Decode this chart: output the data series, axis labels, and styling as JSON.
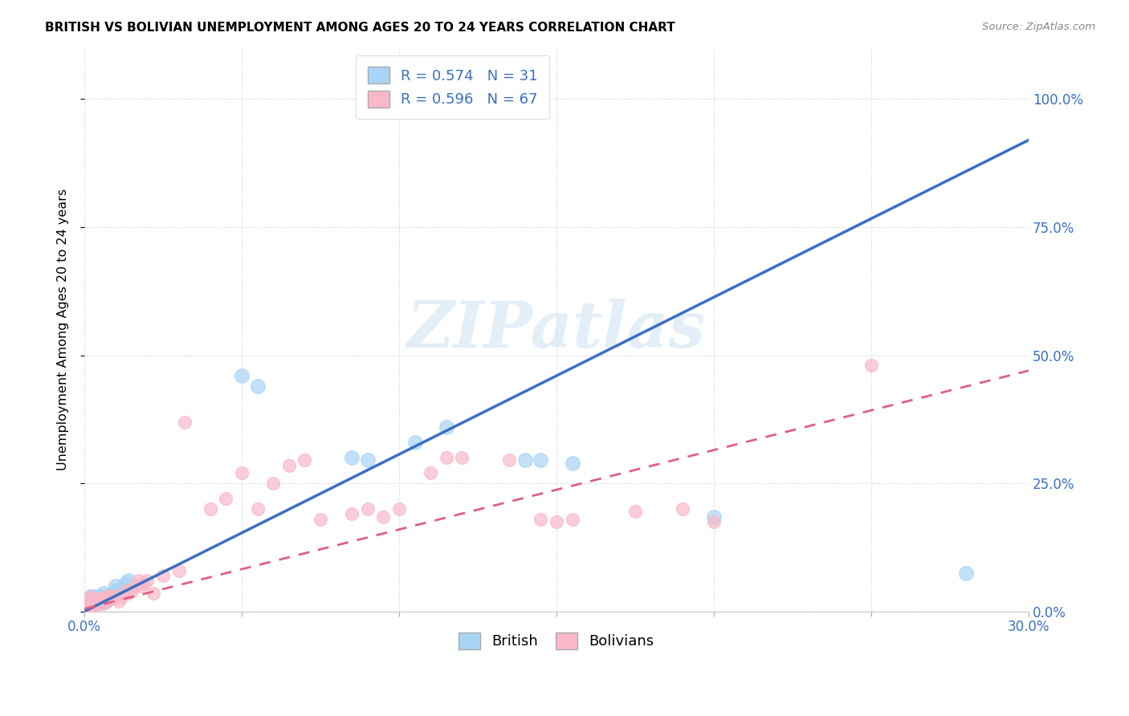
{
  "title": "BRITISH VS BOLIVIAN UNEMPLOYMENT AMONG AGES 20 TO 24 YEARS CORRELATION CHART",
  "source": "Source: ZipAtlas.com",
  "ylabel": "Unemployment Among Ages 20 to 24 years",
  "xlim": [
    0.0,
    0.3
  ],
  "ylim": [
    0.0,
    1.1
  ],
  "british_color": "#a8d4f5",
  "bolivian_color": "#f9b8c8",
  "british_line_color": "#3a6fc4",
  "bolivian_line_color": "#e06080",
  "watermark": "ZIPatlas",
  "british_R": 0.574,
  "british_N": 31,
  "bolivian_R": 0.596,
  "bolivian_N": 67,
  "label_color": "#3a6fc4",
  "brit_line_x0": 0.0,
  "brit_line_y0": 0.0,
  "brit_line_x1": 0.3,
  "brit_line_y1": 0.92,
  "boliv_line_x0": 0.0,
  "boliv_line_y0": 0.005,
  "boliv_line_x1": 0.3,
  "boliv_line_y1": 0.47,
  "xtick_vals": [
    0.0,
    0.05,
    0.1,
    0.15,
    0.2,
    0.25,
    0.3
  ],
  "xtick_labels": [
    "0.0%",
    "",
    "",
    "",
    "",
    "",
    "30.0%"
  ],
  "ytick_vals": [
    0.0,
    0.25,
    0.5,
    0.75,
    1.0
  ],
  "ytick_labels": [
    "0.0%",
    "25.0%",
    "50.0%",
    "75.0%",
    "100.0%"
  ],
  "british_x": [
    0.001,
    0.001,
    0.001,
    0.002,
    0.002,
    0.002,
    0.003,
    0.003,
    0.004,
    0.005,
    0.006,
    0.007,
    0.008,
    0.009,
    0.01,
    0.01,
    0.011,
    0.012,
    0.013,
    0.014,
    0.05,
    0.055,
    0.085,
    0.09,
    0.105,
    0.115,
    0.14,
    0.145,
    0.155,
    0.2,
    0.28
  ],
  "british_y": [
    0.01,
    0.015,
    0.02,
    0.02,
    0.025,
    0.03,
    0.02,
    0.03,
    0.025,
    0.03,
    0.035,
    0.02,
    0.03,
    0.035,
    0.04,
    0.05,
    0.04,
    0.045,
    0.055,
    0.06,
    0.46,
    0.44,
    0.3,
    0.295,
    0.33,
    0.36,
    0.295,
    0.295,
    0.29,
    0.185,
    0.075
  ],
  "bolivian_x": [
    0.001,
    0.001,
    0.001,
    0.001,
    0.001,
    0.002,
    0.002,
    0.002,
    0.002,
    0.002,
    0.003,
    0.003,
    0.003,
    0.003,
    0.004,
    0.004,
    0.004,
    0.005,
    0.005,
    0.005,
    0.006,
    0.006,
    0.006,
    0.007,
    0.007,
    0.008,
    0.008,
    0.009,
    0.009,
    0.01,
    0.011,
    0.012,
    0.013,
    0.014,
    0.015,
    0.016,
    0.017,
    0.018,
    0.019,
    0.02,
    0.022,
    0.025,
    0.03,
    0.032,
    0.04,
    0.045,
    0.05,
    0.055,
    0.06,
    0.065,
    0.07,
    0.075,
    0.085,
    0.09,
    0.095,
    0.1,
    0.11,
    0.115,
    0.12,
    0.135,
    0.145,
    0.15,
    0.155,
    0.175,
    0.19,
    0.2,
    0.25
  ],
  "bolivian_y": [
    0.005,
    0.01,
    0.01,
    0.015,
    0.02,
    0.01,
    0.015,
    0.02,
    0.025,
    0.03,
    0.01,
    0.015,
    0.02,
    0.025,
    0.015,
    0.02,
    0.025,
    0.015,
    0.02,
    0.025,
    0.015,
    0.02,
    0.025,
    0.02,
    0.03,
    0.025,
    0.03,
    0.025,
    0.03,
    0.03,
    0.02,
    0.03,
    0.04,
    0.035,
    0.04,
    0.05,
    0.06,
    0.05,
    0.055,
    0.06,
    0.035,
    0.07,
    0.08,
    0.37,
    0.2,
    0.22,
    0.27,
    0.2,
    0.25,
    0.285,
    0.295,
    0.18,
    0.19,
    0.2,
    0.185,
    0.2,
    0.27,
    0.3,
    0.3,
    0.295,
    0.18,
    0.175,
    0.18,
    0.195,
    0.2,
    0.175,
    0.48
  ]
}
